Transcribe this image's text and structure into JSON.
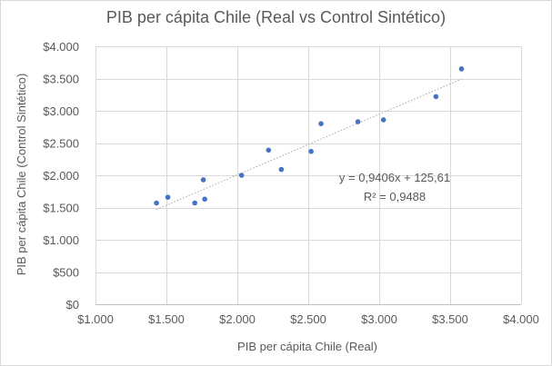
{
  "chart_data": {
    "type": "scatter",
    "title": "PIB per cápita Chile (Real vs Control Sintético)",
    "xlabel": "PIB per cápita Chile (Real)",
    "ylabel": "PIB per cápita Chile (Control Sintético)",
    "xlim": [
      1000,
      4000
    ],
    "ylim": [
      0,
      4000
    ],
    "x_ticks": [
      1000,
      1500,
      2000,
      2500,
      3000,
      3500,
      4000
    ],
    "x_tick_labels": [
      "$1.000",
      "$1.500",
      "$2.000",
      "$2.500",
      "$3.000",
      "$3.500",
      "$4.000"
    ],
    "y_ticks": [
      0,
      500,
      1000,
      1500,
      2000,
      2500,
      3000,
      3500,
      4000
    ],
    "y_tick_labels": [
      "$0",
      "$500",
      "$1.000",
      "$1.500",
      "$2.000",
      "$2.500",
      "$3.000",
      "$3.500",
      "$4.000"
    ],
    "grid": true,
    "marker_color": "#4472c4",
    "trendline_color": "#a6a6a6",
    "series": [
      {
        "name": "PIB per cápita Chile",
        "x": [
          1430,
          1510,
          1700,
          1760,
          1770,
          2030,
          2220,
          2310,
          2520,
          2590,
          2850,
          3030,
          3400,
          3580
        ],
        "y": [
          1570,
          1660,
          1570,
          1930,
          1630,
          2000,
          2390,
          2090,
          2370,
          2800,
          2830,
          2860,
          3220,
          3650
        ]
      }
    ],
    "trendline": {
      "slope": 0.9406,
      "intercept": 125.61,
      "x_range": [
        1430,
        3580
      ],
      "equation_label": "y = 0,9406x + 125,61",
      "r2_label": "R² = 0,9488"
    }
  }
}
